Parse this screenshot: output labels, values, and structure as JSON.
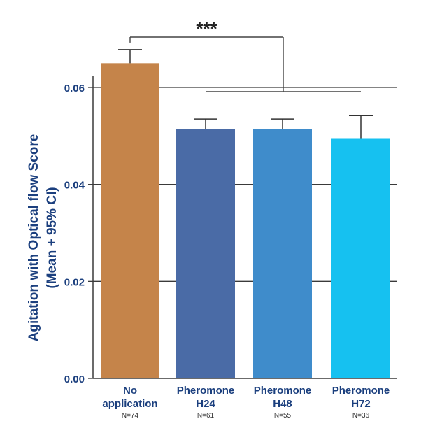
{
  "chart_data": {
    "type": "bar",
    "title": "",
    "xlabel": "",
    "ylabel_line1": "Agitation with Optical flow Score",
    "ylabel_line2": "(Mean + 95% CI)",
    "ylim": [
      0,
      0.06
    ],
    "yticks": [
      {
        "value": 0.0,
        "label": "0.00"
      },
      {
        "value": 0.02,
        "label": "0.02"
      },
      {
        "value": 0.04,
        "label": "0.04"
      },
      {
        "value": 0.06,
        "label": "0.06"
      }
    ],
    "grid": true,
    "categories": [
      {
        "line1": "No",
        "line2": "application",
        "n_label": "N=74",
        "value": 0.065,
        "ci_upper": 0.0678,
        "color": "#C5844A"
      },
      {
        "line1": "Pheromone",
        "line2": "H24",
        "n_label": "N=61",
        "value": 0.0514,
        "ci_upper": 0.0535,
        "color": "#4A6BA6"
      },
      {
        "line1": "Pheromone",
        "line2": "H48",
        "n_label": "N=55",
        "value": 0.0514,
        "ci_upper": 0.0535,
        "color": "#3F8CCB"
      },
      {
        "line1": "Pheromone",
        "line2": "H72",
        "n_label": "N=36",
        "value": 0.0494,
        "ci_upper": 0.0542,
        "color": "#16C1F0"
      }
    ],
    "significance": {
      "label": "***",
      "from": 0,
      "to": [
        1,
        2,
        3
      ]
    }
  },
  "colors": {
    "axis_text": "#1B3F7E",
    "grid": "#3A3A3A",
    "errorbar": "#333333"
  }
}
